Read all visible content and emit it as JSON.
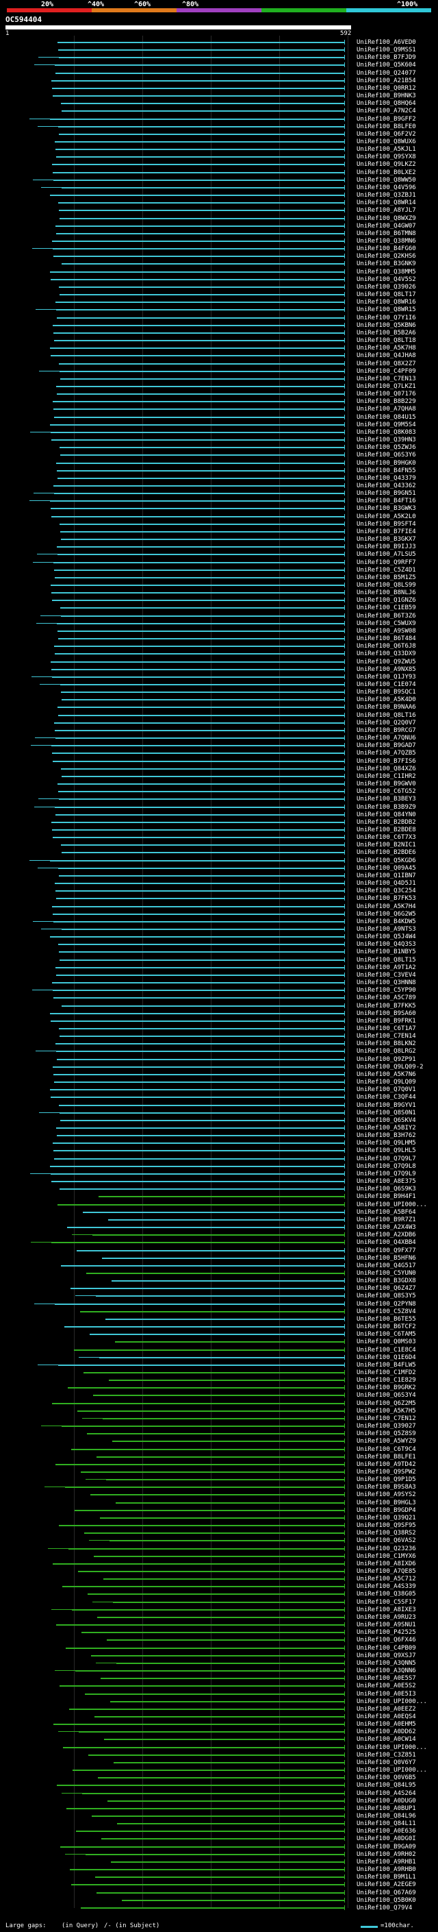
{
  "header": {
    "scale_labels": [
      "20%",
      "^40%",
      "^60%",
      "^80%",
      "^100%"
    ],
    "scale_colors": [
      "#e02020",
      "#e07a1c",
      "#a040c0",
      "#20b020",
      "#30c8d8"
    ],
    "query_id": "OC594404",
    "query_start": "1",
    "query_end": "592"
  },
  "hits": [
    "UniRef100_A6VED0",
    "UniRef100_Q9MSS1",
    "UniRef100_B7FJD9",
    "UniRef100_Q5K604",
    "UniRef100_Q24077",
    "UniRef100_A21B54",
    "UniRef100_Q0RR12",
    "UniRef100_B9HNK3",
    "UniRef100_Q8HQ64",
    "UniRef100_A7N2C4",
    "UniRef100_B9GFF2",
    "UniRef100_B8LFE0",
    "UniRef100_Q6F2V2",
    "UniRef100_Q8WUX6",
    "UniRef100_A5KJL1",
    "UniRef100_Q9SYX8",
    "UniRef100_Q9LKZ2",
    "UniRef100_B0LXE2",
    "UniRef100_Q8WW50",
    "UniRef100_Q4V596",
    "UniRef100_Q3ZBJ1",
    "UniRef100_Q8WR14",
    "UniRef100_A8YJL7",
    "UniRef100_Q8WXZ9",
    "UniRef100_Q4GW07",
    "UniRef100_B6TMN8",
    "UniRef100_Q38MN6",
    "UniRef100_B4FG60",
    "UniRef100_Q2KHS6",
    "UniRef100_B3GNK9",
    "UniRef100_Q38MM5",
    "UniRef100_Q4V5S2",
    "UniRef100_Q39026",
    "UniRef100_Q8LT17",
    "UniRef100_Q8WR16",
    "UniRef100_Q8WR15",
    "UniRef100_Q7Y1I6",
    "UniRef100_Q5KBN6",
    "UniRef100_B5B2A6",
    "UniRef100_Q8LT18",
    "UniRef100_A5K7H8",
    "UniRef100_Q4JHA8",
    "UniRef100_Q8X2Z7",
    "UniRef100_C4PF09",
    "UniRef100_C7EN13",
    "UniRef100_Q7LKZ1",
    "UniRef100_Q07176",
    "UniRef100_B8B229",
    "UniRef100_A7QHA8",
    "UniRef100_Q84U15",
    "UniRef100_Q9M5S4",
    "UniRef100_Q8K083",
    "UniRef100_Q39HN3",
    "UniRef100_Q5ZWJ6",
    "UniRef100_Q6S3Y6",
    "UniRef100_B9HGK0",
    "UniRef100_B4FN55",
    "UniRef100_Q43379",
    "UniRef100_Q43362",
    "UniRef100_B9GN51",
    "UniRef100_B4FT16",
    "UniRef100_B3GWK3",
    "UniRef100_A5K2L0",
    "UniRef100_B9SFT4",
    "UniRef100_B7FIE4",
    "UniRef100_B3GKX7",
    "UniRef100_B9IJJ3",
    "UniRef100_A7LSU5",
    "UniRef100_Q9RFF7",
    "UniRef100_C5Z4D1",
    "UniRef100_B5M1Z5",
    "UniRef100_Q8LS99",
    "UniRef100_B8NLJ6",
    "UniRef100_Q1GNZ6",
    "UniRef100_C1EB59",
    "UniRef100_B6T3Z6",
    "UniRef100_C5WUX9",
    "UniRef100_A9SW08",
    "UniRef100_B6T484",
    "UniRef100_Q6T6J8",
    "UniRef100_Q33DX9",
    "UniRef100_Q9ZWU5",
    "UniRef100_A9NX85",
    "UniRef100_Q1JY93",
    "UniRef100_C1E074",
    "UniRef100_B9SQC1",
    "UniRef100_A5K4D0",
    "UniRef100_B9NAA6",
    "UniRef100_Q8LT16",
    "UniRef100_Q2Q0V7",
    "UniRef100_B9RCG7",
    "UniRef100_A7QNU6",
    "UniRef100_B9GAD7",
    "UniRef100_A7QZB5",
    "UniRef100_B7FIS6",
    "UniRef100_Q84XZ6",
    "UniRef100_C1IHR2",
    "UniRef100_B9GWV0",
    "UniRef100_C6TG52",
    "UniRef100_B3BEY3",
    "UniRef100_B3B9Z9",
    "UniRef100_Q84YN0",
    "UniRef100_B2BDB2",
    "UniRef100_B2BDE8",
    "UniRef100_C6T7X3",
    "UniRef100_B2NIC1",
    "UniRef100_B2BDE6",
    "UniRef100_Q5KGD6",
    "UniRef100_Q09A45",
    "UniRef100_Q1IBN7",
    "UniRef100_Q4D5J1",
    "UniRef100_Q3C254",
    "UniRef100_B7FK53",
    "UniRef100_A5K7H4",
    "UniRef100_Q6G2W5",
    "UniRef100_B4KDW5",
    "UniRef100_A9NTS3",
    "UniRef100_Q5J4W4",
    "UniRef100_Q4Q3S3",
    "UniRef100_B1NBY5",
    "UniRef100_Q8LT15",
    "UniRef100_A9T1A2",
    "UniRef100_C3VEV4",
    "UniRef100_Q3HNN8",
    "UniRef100_C5YP90",
    "UniRef100_A5C789",
    "UniRef100_B7FKK5",
    "UniRef100_B9SA60",
    "UniRef100_B9FRK1",
    "UniRef100_C6T1A7",
    "UniRef100_C7EN14",
    "UniRef100_B8LKN2",
    "UniRef100_Q8LRG2",
    "UniRef100_Q9ZP91",
    "UniRef100_Q9LQ09-2",
    "UniRef100_A5K7N6",
    "UniRef100_Q9LQ09",
    "UniRef100_Q7Q0V1",
    "UniRef100_C3QF44",
    "UniRef100_B9GYV1",
    "UniRef100_Q8S0N1",
    "UniRef100_Q6SKV4",
    "UniRef100_A5BIY2",
    "UniRef100_B3H762",
    "UniRef100_Q9LHM5",
    "UniRef100_Q9LHL5",
    "UniRef100_Q7Q9L7",
    "UniRef100_Q7Q9L8",
    "UniRef100_Q7Q9L9",
    "UniRef100_A8E375",
    "UniRef100_Q6S9K3",
    "UniRef100_B9H4F1",
    "UniRef100_UPI000...",
    "UniRef100_A5BF64",
    "UniRef100_B9R7Z1",
    "UniRef100_A2X4W3",
    "UniRef100_A2XDB6",
    "UniRef100_Q4XBB4",
    "UniRef100_Q9FX77",
    "UniRef100_B5HFN6",
    "UniRef100_Q4G517",
    "UniRef100_C5YUN0",
    "UniRef100_B3GDX8",
    "UniRef100_Q6Z4Z7",
    "UniRef100_Q8S3Y5",
    "UniRef100_Q2PYN8",
    "UniRef100_C5Z8V4",
    "UniRef100_B6TE55",
    "UniRef100_B6TCF2",
    "UniRef100_C6TAM5",
    "UniRef100_Q0MS03",
    "UniRef100_C1E8C4",
    "UniRef100_Q1E6D4",
    "UniRef100_B4FLW5",
    "UniRef100_C1MFD2",
    "UniRef100_C1E829",
    "UniRef100_B9GRK2",
    "UniRef100_Q6S3Y4",
    "UniRef100_Q6Z2M5",
    "UniRef100_A5K7H5",
    "UniRef100_C7EN12",
    "UniRef100_Q39027",
    "UniRef100_Q5Z8S9",
    "UniRef100_A5WYZ9",
    "UniRef100_C6T9C4",
    "UniRef100_B8LFE1",
    "UniRef100_A9TD42",
    "UniRef100_Q9SPW2",
    "UniRef100_Q9P1D5",
    "UniRef100_B9S8A3",
    "UniRef100_A9SYS2",
    "UniRef100_B9HGL3",
    "UniRef100_B9GDP4",
    "UniRef100_Q39Q21",
    "UniRef100_Q9SF95",
    "UniRef100_Q38RS2",
    "UniRef100_Q6VAS2",
    "UniRef100_Q23236",
    "UniRef100_C1MYX6",
    "UniRef100_A8IXD6",
    "UniRef100_A7QE85",
    "UniRef100_A5C712",
    "UniRef100_A4S339",
    "UniRef100_Q38G05",
    "UniRef100_C5SF17",
    "UniRef100_A8IXE3",
    "UniRef100_A9RU23",
    "UniRef100_A9SNU1",
    "UniRef100_P42525",
    "UniRef100_Q6FX46",
    "UniRef100_C4PB09",
    "UniRef100_Q9XSJ7",
    "UniRef100_A3QNN5",
    "UniRef100_A3QNN6",
    "UniRef100_A0E5S7",
    "UniRef100_A0E5S2",
    "UniRef100_A0E5I3",
    "UniRef100_UPI000...",
    "UniRef100_A0EEZ2",
    "UniRef100_A0EQS4",
    "UniRef100_A0EHM5",
    "UniRef100_A0DD62",
    "UniRef100_A0CW14",
    "UniRef100_UPI000...",
    "UniRef100_C3Z851",
    "UniRef100_Q0V6Y7",
    "UniRef100_UPI000...",
    "UniRef100_Q0V6B5",
    "UniRef100_Q84L95",
    "UniRef100_A4S264",
    "UniRef100_A0DUG0",
    "UniRef100_A0BUP1",
    "UniRef100_Q84L96",
    "UniRef100_Q84L11",
    "UniRef100_A0E636",
    "UniRef100_A0DG0I",
    "UniRef100_B9GA09",
    "UniRef100_A9RH02",
    "UniRef100_A9RHB1",
    "UniRef100_A9RHB0",
    "UniRef100_B9M1L1",
    "UniRef100_A2EGE9",
    "UniRef100_Q67A69",
    "UniRef100_Q5B0K0",
    "UniRef100_Q79V4"
  ],
  "colors": {
    "high_identity": "#40c8d8",
    "medium_identity": "#30b020",
    "background": "#000000"
  },
  "legend": {
    "large_gaps_label": "Large gaps:",
    "in_query": "(in Query)",
    "in_subject": "/- (in Subject)",
    "scale_text": "=100char."
  }
}
